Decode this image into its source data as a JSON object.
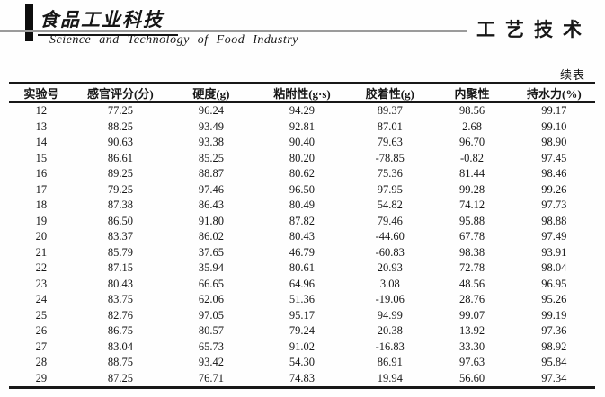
{
  "header": {
    "journal_name_cn": "食品工业科技",
    "journal_name_en": "Science and Technology of Food Industry",
    "section_title_cn": "工艺技术",
    "continued_table_label": "续表"
  },
  "table": {
    "columns": [
      "实验号",
      "感官评分(分)",
      "硬度(g)",
      "粘附性(g·s)",
      "胶着性(g)",
      "内聚性",
      "持水力(%)"
    ],
    "rows": [
      [
        "12",
        "77.25",
        "96.24",
        "94.29",
        "89.37",
        "98.56",
        "99.17"
      ],
      [
        "13",
        "88.25",
        "93.49",
        "92.81",
        "87.01",
        "2.68",
        "99.10"
      ],
      [
        "14",
        "90.63",
        "93.38",
        "90.40",
        "79.63",
        "96.70",
        "98.90"
      ],
      [
        "15",
        "86.61",
        "85.25",
        "80.20",
        "-78.85",
        "-0.82",
        "97.45"
      ],
      [
        "16",
        "89.25",
        "88.87",
        "80.62",
        "75.36",
        "81.44",
        "98.46"
      ],
      [
        "17",
        "79.25",
        "97.46",
        "96.50",
        "97.95",
        "99.28",
        "99.26"
      ],
      [
        "18",
        "87.38",
        "86.43",
        "80.49",
        "54.82",
        "74.12",
        "97.73"
      ],
      [
        "19",
        "86.50",
        "91.80",
        "87.82",
        "79.46",
        "95.88",
        "98.88"
      ],
      [
        "20",
        "83.37",
        "86.02",
        "80.43",
        "-44.60",
        "67.78",
        "97.49"
      ],
      [
        "21",
        "85.79",
        "37.65",
        "46.79",
        "-60.83",
        "98.38",
        "93.91"
      ],
      [
        "22",
        "87.15",
        "35.94",
        "80.61",
        "20.93",
        "72.78",
        "98.04"
      ],
      [
        "23",
        "80.43",
        "66.65",
        "64.96",
        "3.08",
        "48.56",
        "96.95"
      ],
      [
        "24",
        "83.75",
        "62.06",
        "51.36",
        "-19.06",
        "28.76",
        "95.26"
      ],
      [
        "25",
        "82.76",
        "97.05",
        "95.17",
        "94.99",
        "99.07",
        "99.19"
      ],
      [
        "26",
        "86.75",
        "80.57",
        "79.24",
        "20.38",
        "13.92",
        "97.36"
      ],
      [
        "27",
        "83.04",
        "65.73",
        "91.02",
        "-16.83",
        "33.30",
        "98.92"
      ],
      [
        "28",
        "88.75",
        "93.42",
        "54.30",
        "86.91",
        "97.63",
        "95.84"
      ],
      [
        "29",
        "87.25",
        "76.71",
        "74.83",
        "19.94",
        "56.60",
        "97.34"
      ]
    ]
  },
  "colors": {
    "text": "#161616",
    "rule_gray": "#9b9b9b",
    "border_black": "#181818"
  }
}
